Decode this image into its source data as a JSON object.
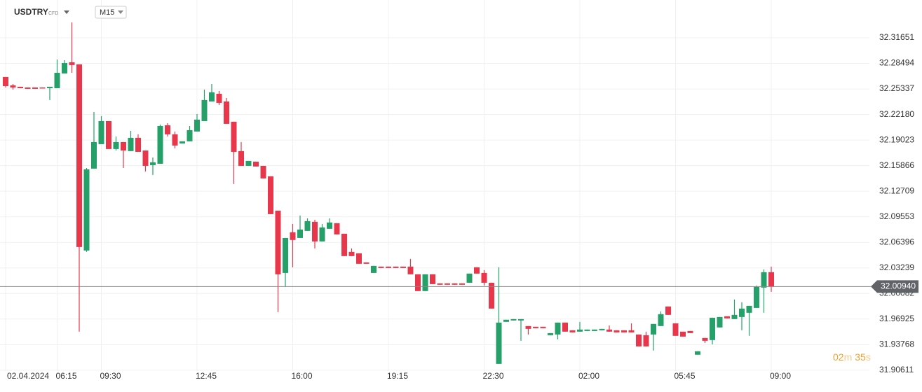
{
  "header": {
    "symbol": "USDTRY",
    "instrument_type": "CFD",
    "timeframe": "M15"
  },
  "chart_data": {
    "type": "candlestick",
    "categories": [
      "02.04.2024",
      null,
      null,
      null,
      null,
      null,
      null,
      "06:15",
      null,
      null,
      null,
      null,
      null,
      "09:30",
      null,
      null,
      null,
      null,
      null,
      null,
      null,
      null,
      null,
      null,
      null,
      null,
      "12:45",
      null,
      null,
      null,
      null,
      null,
      null,
      null,
      null,
      null,
      null,
      null,
      null,
      "16:00",
      null,
      null,
      null,
      null,
      null,
      null,
      null,
      null,
      null,
      null,
      null,
      null,
      "19:15",
      null,
      null,
      null,
      null,
      null,
      null,
      null,
      null,
      null,
      null,
      null,
      null,
      "22:30",
      null,
      null,
      null,
      null,
      null,
      null,
      null,
      null,
      null,
      null,
      null,
      null,
      "02:00",
      null,
      null,
      null,
      null,
      null,
      null,
      null,
      null,
      null,
      null,
      null,
      null,
      "05:45",
      null,
      null,
      null,
      null,
      null,
      null,
      null,
      null,
      null,
      null,
      null,
      null,
      "09:00"
    ],
    "open": [
      32.2682,
      32.2578,
      32.2561,
      32.2552,
      32.2552,
      32.2552,
      32.2543,
      32.2543,
      32.2725,
      32.2863,
      32.2837,
      32.0539,
      32.155,
      32.1852,
      32.2137,
      32.1792,
      32.1878,
      32.1766,
      32.193,
      32.1774,
      32.1593,
      32.161,
      32.2085,
      32.1973,
      32.1861,
      32.1887,
      32.2008,
      32.2137,
      32.2379,
      32.2474,
      32.2379,
      32.2129,
      32.1766,
      32.1584,
      32.1636,
      32.1584,
      32.1455,
      32.1031,
      32.0262,
      32.0764,
      32.0694,
      32.0781,
      32.0893,
      32.0651,
      32.0807,
      32.0876,
      32.0746,
      32.0522,
      32.0504,
      32.0392,
      32.0262,
      32.034,
      32.034,
      32.034,
      32.034,
      32.034,
      32.0245,
      32.0038,
      32.0245,
      32.0133,
      32.0133,
      32.0133,
      32.0133,
      32.0141,
      32.0332,
      32.0262,
      32.0141,
      31.9139,
      31.9658,
      31.9675,
      31.9675,
      31.9606,
      31.9597,
      31.9597,
      31.9493,
      31.9502,
      31.9649,
      31.9554,
      31.9537,
      31.9545,
      31.9545,
      31.9554,
      31.9563,
      31.9554,
      31.9554,
      31.9554,
      31.9502,
      31.9493,
      31.9502,
      31.9606,
      31.9848,
      31.964,
      31.9537,
      31.9545,
      31.9252,
      31.9459,
      31.9433,
      31.9589,
      31.9727,
      31.9692,
      31.9718,
      31.977,
      31.983,
      32.0081,
      32.0271
    ],
    "high": [
      32.2682,
      32.2595,
      32.2561,
      32.2552,
      32.2552,
      32.2552,
      32.2561,
      32.2898,
      32.2889,
      32.3355,
      32.2837,
      32.1558,
      32.225,
      32.2198,
      32.2137,
      32.1947,
      32.1878,
      32.2016,
      32.1973,
      32.1774,
      32.1688,
      32.2094,
      32.2111,
      32.2008,
      32.1887,
      32.2077,
      32.2224,
      32.2526,
      32.2595,
      32.2509,
      32.2422,
      32.2129,
      32.1878,
      32.1645,
      32.1636,
      32.1584,
      32.1455,
      32.1031,
      32.0694,
      32.0867,
      32.0971,
      32.0936,
      32.0919,
      32.0867,
      32.0936,
      32.0876,
      32.0746,
      32.0565,
      32.0504,
      32.0392,
      32.0349,
      32.034,
      32.034,
      32.034,
      32.034,
      32.0435,
      32.0245,
      32.0245,
      32.0245,
      32.0133,
      32.0133,
      32.0133,
      32.0133,
      32.0254,
      32.0332,
      32.0297,
      32.0141,
      32.0332,
      31.9684,
      31.9692,
      31.9692,
      31.9606,
      31.9597,
      31.9597,
      31.9519,
      31.9649,
      31.9649,
      31.9554,
      31.9658,
      31.9563,
      31.9563,
      31.9571,
      31.9614,
      31.9554,
      31.9554,
      31.964,
      31.9502,
      31.9537,
      31.9632,
      31.9787,
      31.9848,
      31.964,
      31.9537,
      31.9545,
      31.9295,
      31.9459,
      31.9709,
      31.9718,
      31.9727,
      31.9934,
      31.99,
      31.9856,
      32.0107,
      32.0306,
      32.034
    ],
    "low": [
      32.2552,
      32.2526,
      32.2543,
      32.2535,
      32.2535,
      32.2543,
      32.2397,
      32.2543,
      32.2725,
      32.2733,
      31.9537,
      32.0522,
      32.155,
      32.1852,
      32.1792,
      32.1774,
      32.1558,
      32.1766,
      32.1757,
      32.1515,
      32.1472,
      32.161,
      32.1947,
      32.18,
      32.1861,
      32.1887,
      32.2008,
      32.2137,
      32.2379,
      32.2336,
      32.2103,
      32.136,
      32.1584,
      32.1584,
      32.1576,
      32.1429,
      32.0988,
      31.9779,
      32.009,
      32.0332,
      32.0694,
      32.0781,
      32.0565,
      32.0651,
      32.0807,
      32.0738,
      32.047,
      32.047,
      32.0375,
      32.0375,
      32.0262,
      32.0323,
      32.0323,
      32.0323,
      32.0323,
      32.0245,
      32.0038,
      32.0038,
      32.0124,
      32.0116,
      32.0116,
      32.0116,
      32.0116,
      32.0141,
      32.0254,
      32.0107,
      31.9822,
      31.9139,
      31.9658,
      31.9675,
      31.9424,
      31.9502,
      31.958,
      31.958,
      31.9493,
      31.9442,
      31.9537,
      31.9528,
      31.9537,
      31.9545,
      31.9545,
      31.9554,
      31.9537,
      31.9528,
      31.9528,
      31.9528,
      31.9355,
      31.9355,
      31.9303,
      31.9606,
      31.9744,
      31.9485,
      31.9476,
      31.9519,
      31.9252,
      31.9398,
      31.9381,
      31.9589,
      31.9701,
      31.9692,
      31.9554,
      31.9485,
      31.983,
      31.977,
      32.0029
    ],
    "close": [
      32.2569,
      32.2552,
      32.2543,
      32.2535,
      32.2535,
      32.2543,
      32.2561,
      32.2733,
      32.2854,
      32.2829,
      32.0582,
      32.1541,
      32.1878,
      32.2137,
      32.1792,
      32.1878,
      32.1774,
      32.193,
      32.1757,
      32.1584,
      32.1628,
      32.2077,
      32.1973,
      32.1835,
      32.1887,
      32.2025,
      32.2155,
      32.2397,
      32.2492,
      32.2362,
      32.2103,
      32.1757,
      32.1584,
      32.1645,
      32.1576,
      32.1429,
      32.0988,
      32.0245,
      32.0694,
      32.0669,
      32.0798,
      32.0902,
      32.0651,
      32.0824,
      32.0885,
      32.0738,
      32.047,
      32.047,
      32.0375,
      32.0375,
      32.0349,
      32.0323,
      32.0323,
      32.0323,
      32.0323,
      32.0245,
      32.0038,
      32.0245,
      32.0124,
      32.0116,
      32.0116,
      32.0116,
      32.0116,
      32.0254,
      32.0254,
      32.0141,
      31.9822,
      31.9649,
      31.9684,
      31.9692,
      31.9692,
      31.9571,
      31.958,
      31.958,
      31.9519,
      31.9649,
      31.9537,
      31.9528,
      31.9563,
      31.9563,
      31.9563,
      31.9571,
      31.9537,
      31.9528,
      31.9528,
      31.9528,
      31.9355,
      31.9355,
      31.9632,
      31.9753,
      31.9744,
      31.9485,
      31.9476,
      31.9519,
      31.9295,
      31.9424,
      31.9709,
      31.9718,
      31.9701,
      31.9744,
      31.9822,
      31.9856,
      32.009,
      32.0271,
      32.0094
    ],
    "up_color": "#26a069",
    "down_color": "#e8374b",
    "ylim": [
      31.9008,
      32.3632
    ],
    "yticks": [
      32.31651,
      32.28494,
      32.25337,
      {
        "value": 32.2218,
        "label": "32.22180"
      },
      32.19023,
      32.15866,
      32.12709,
      32.09553,
      32.06396,
      32.03239,
      32.00082,
      31.96925,
      31.93768,
      31.90611
    ],
    "grid": true,
    "current_price": {
      "value": 32.0094,
      "label": "32.00940"
    }
  },
  "countdown": {
    "minutes": "02",
    "minutes_unit": "m",
    "seconds": "35",
    "seconds_unit": "s"
  }
}
